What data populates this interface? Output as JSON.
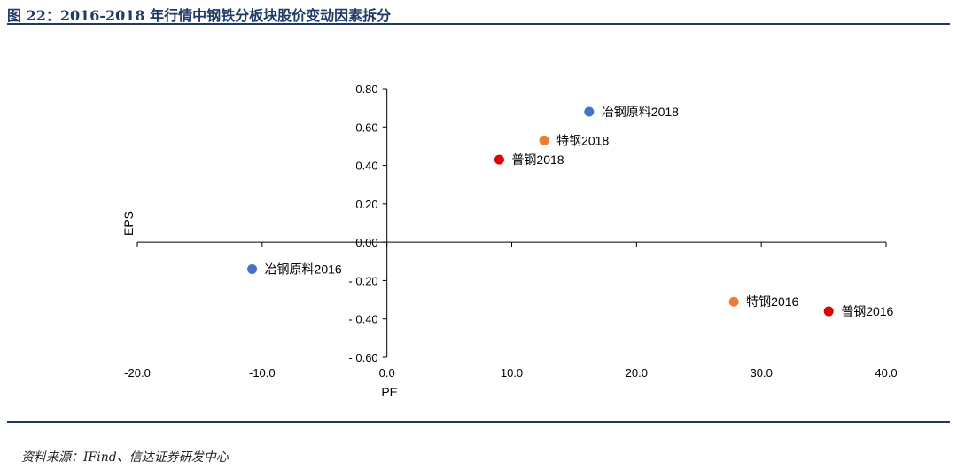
{
  "figure": {
    "title": "图 22：2016-2018 年行情中钢铁分板块股价变动因素拆分",
    "source": "资料来源：IFind、信达证券研发中心"
  },
  "chart_data": {
    "type": "scatter",
    "xlabel": "PE",
    "ylabel": "EPS",
    "xlim": [
      -20,
      40
    ],
    "ylim": [
      -0.6,
      0.8
    ],
    "xticks": [
      -20,
      -10,
      0,
      10,
      20,
      30,
      40
    ],
    "yticks": [
      -0.6,
      -0.4,
      -0.2,
      0,
      0.2,
      0.4,
      0.6,
      0.8
    ],
    "xtick_labels": [
      "-20.0",
      "-10.0",
      "0.0",
      "10.0",
      "20.0",
      "30.0",
      "40.0"
    ],
    "ytick_labels": [
      "- 0.60",
      "- 0.40",
      "- 0.20",
      "0.00",
      "0.20",
      "0.40",
      "0.60",
      "0.80"
    ],
    "grid": false,
    "points": [
      {
        "label": "冶钢原料2018",
        "x": 16.2,
        "y": 0.68,
        "color": "#4472C4"
      },
      {
        "label": "特钢2018",
        "x": 12.6,
        "y": 0.53,
        "color": "#ED7D31"
      },
      {
        "label": "普钢2018",
        "x": 9.0,
        "y": 0.43,
        "color": "#E00000"
      },
      {
        "label": "冶钢原料2016",
        "x": -10.8,
        "y": -0.14,
        "color": "#4472C4"
      },
      {
        "label": "特钢2016",
        "x": 27.8,
        "y": -0.31,
        "color": "#ED7D31"
      },
      {
        "label": "普钢2016",
        "x": 35.4,
        "y": -0.36,
        "color": "#E00000"
      }
    ]
  }
}
